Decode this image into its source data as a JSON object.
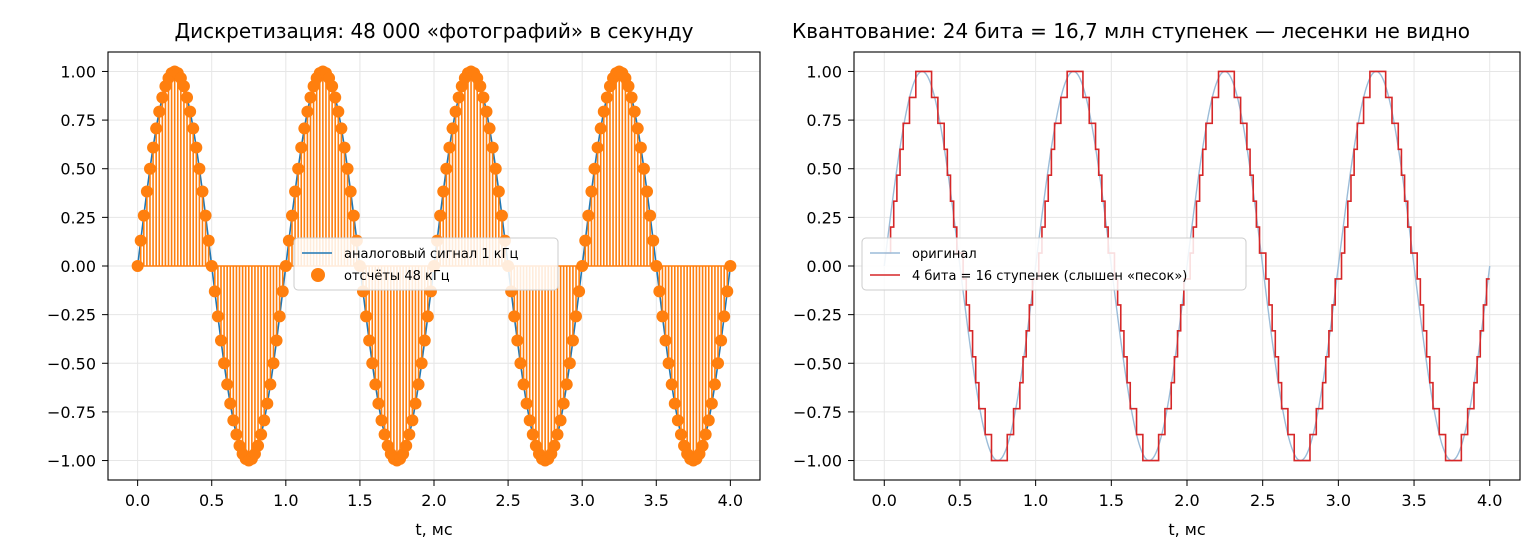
{
  "chart_data": [
    {
      "type": "line",
      "title": "Дискретизация: 48 000 «фотографий» в секунду",
      "xlabel": "t, мс",
      "ylabel": "",
      "xlim": [
        -0.2,
        4.2
      ],
      "ylim": [
        -1.1,
        1.1
      ],
      "xticks": [
        "0.0",
        "0.5",
        "1.0",
        "1.5",
        "2.0",
        "2.5",
        "3.0",
        "3.5",
        "4.0"
      ],
      "yticks": [
        "−1.00",
        "−0.75",
        "−0.50",
        "−0.25",
        "0.00",
        "0.25",
        "0.50",
        "0.75",
        "1.00"
      ],
      "grid": true,
      "legend_position": "center",
      "series": [
        {
          "name": "аналоговый сигнал 1 кГц",
          "kind": "line",
          "color": "#1f77b4",
          "function": "sin(2π·1·t)",
          "t_range": [
            0,
            4
          ]
        },
        {
          "name": "отсчёты 48 кГц",
          "kind": "stem",
          "color": "#ff7f0e",
          "marker": "circle",
          "sample_rate_khz": 48,
          "t_range": [
            0,
            4
          ]
        }
      ]
    },
    {
      "type": "line",
      "title": "Квантование: 24 бита = 16,7 млн ступенек — лесенки не видно",
      "xlabel": "t, мс",
      "ylabel": "",
      "xlim": [
        -0.2,
        4.2
      ],
      "ylim": [
        -1.1,
        1.1
      ],
      "xticks": [
        "0.0",
        "0.5",
        "1.0",
        "1.5",
        "2.0",
        "2.5",
        "3.0",
        "3.5",
        "4.0"
      ],
      "yticks": [
        "−1.00",
        "−0.75",
        "−0.50",
        "−0.25",
        "0.00",
        "0.25",
        "0.50",
        "0.75",
        "1.00"
      ],
      "grid": true,
      "legend_position": "center-left",
      "series": [
        {
          "name": "оригинал",
          "kind": "line",
          "color": "#9bbcd8",
          "function": "sin(2π·1·t)",
          "t_range": [
            0,
            4
          ]
        },
        {
          "name": "4 бита = 16 ступенек (слышен «песок»)",
          "kind": "step",
          "color": "#d62728",
          "bits": 4,
          "levels": 16,
          "sample_rate_khz": 48,
          "t_range": [
            0,
            4
          ]
        }
      ]
    }
  ]
}
